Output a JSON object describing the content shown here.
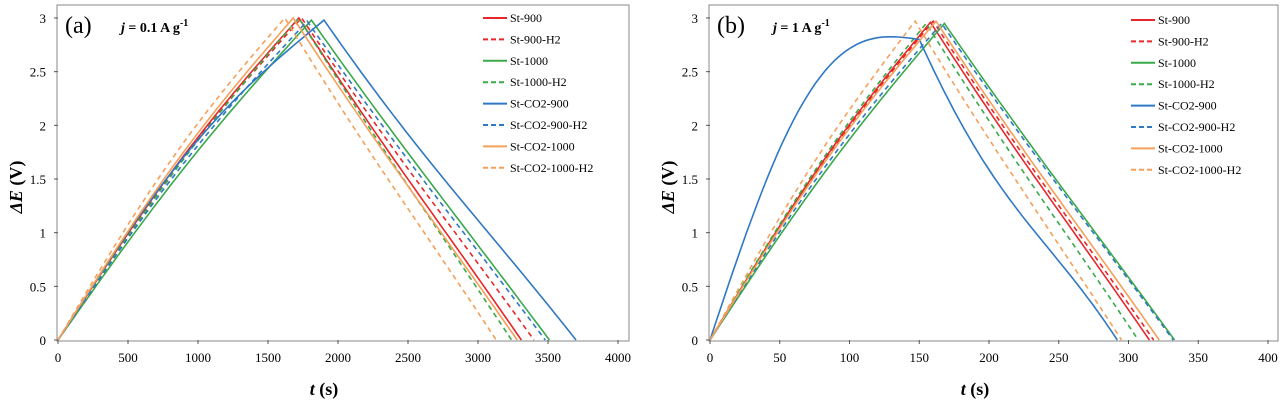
{
  "colors": {
    "red": "#e8272a",
    "green": "#3aa94a",
    "blue": "#2f78c4",
    "orange": "#f5a05a",
    "frame": "#888888"
  },
  "chart_data": [
    {
      "type": "line",
      "panel_label": "(a)",
      "annotation": {
        "prefix": "j",
        "text": " = 0.1 A g",
        "sup": "-1"
      },
      "xlabel": {
        "var": "t",
        "rest": " (s)"
      },
      "ylabel": {
        "var": "ΔE",
        "rest": " (V)"
      },
      "xlim": [
        0,
        4000
      ],
      "ylim": [
        0,
        3
      ],
      "xticks": [
        0,
        500,
        1000,
        1500,
        2000,
        2500,
        3000,
        3500,
        4000
      ],
      "yticks": [
        0,
        0.5,
        1,
        1.5,
        2,
        2.5,
        3
      ],
      "ytick_labels": [
        "0",
        "0.5",
        "1",
        "1.5",
        "2",
        "2.5",
        "3"
      ],
      "legend_position": "top-right",
      "series": [
        {
          "name": "St-900",
          "color": "red",
          "dashed": false,
          "charge_end": 1720,
          "discharge_end": 3310,
          "curve": 0.05,
          "peak": 3.0
        },
        {
          "name": "St-900-H2",
          "color": "red",
          "dashed": true,
          "charge_end": 1740,
          "discharge_end": 3400,
          "curve": 0.05,
          "peak": 3.0
        },
        {
          "name": "St-1000",
          "color": "green",
          "dashed": false,
          "charge_end": 1810,
          "discharge_end": 3510,
          "curve": 0.04,
          "peak": 2.98
        },
        {
          "name": "St-1000-H2",
          "color": "green",
          "dashed": true,
          "charge_end": 1720,
          "discharge_end": 3240,
          "curve": 0.04,
          "peak": 3.0
        },
        {
          "name": "St-CO2-900",
          "color": "blue",
          "dashed": false,
          "charge_end": 1900,
          "discharge_end": 3700,
          "curve": 0.1,
          "peak": 2.98
        },
        {
          "name": "St-CO2-900-H2",
          "color": "blue",
          "dashed": true,
          "charge_end": 1780,
          "discharge_end": 3480,
          "curve": 0.05,
          "peak": 2.97
        },
        {
          "name": "St-CO2-1000",
          "color": "orange",
          "dashed": false,
          "charge_end": 1680,
          "discharge_end": 3280,
          "curve": 0.05,
          "peak": 3.0
        },
        {
          "name": "St-CO2-1000-H2",
          "color": "orange",
          "dashed": true,
          "charge_end": 1620,
          "discharge_end": 3130,
          "curve": 0.06,
          "peak": 3.0
        }
      ]
    },
    {
      "type": "line",
      "panel_label": "(b)",
      "annotation": {
        "prefix": "j",
        "text": " = 1 A g",
        "sup": "-1"
      },
      "xlabel": {
        "var": "t",
        "rest": " (s)"
      },
      "ylabel": {
        "var": "ΔE",
        "rest": " (V)"
      },
      "xlim": [
        0,
        400
      ],
      "ylim": [
        0,
        3
      ],
      "xticks": [
        0,
        50,
        100,
        150,
        200,
        250,
        300,
        350,
        400
      ],
      "yticks": [
        0,
        0.5,
        1,
        1.5,
        2,
        2.5,
        3
      ],
      "ytick_labels": [
        "0",
        "0.5",
        "1",
        "1.5",
        "2",
        "2.5",
        "3"
      ],
      "legend_position": "top-right",
      "series": [
        {
          "name": "St-900",
          "color": "red",
          "dashed": false,
          "charge_end": 158,
          "discharge_end": 315,
          "curve": 0.05,
          "peak": 2.96
        },
        {
          "name": "St-900-H2",
          "color": "red",
          "dashed": true,
          "charge_end": 160,
          "discharge_end": 318,
          "curve": 0.05,
          "peak": 2.97
        },
        {
          "name": "St-1000",
          "color": "green",
          "dashed": false,
          "charge_end": 168,
          "discharge_end": 333,
          "curve": 0.04,
          "peak": 2.95
        },
        {
          "name": "St-1000-H2",
          "color": "green",
          "dashed": true,
          "charge_end": 155,
          "discharge_end": 307,
          "curve": 0.05,
          "peak": 2.95
        },
        {
          "name": "St-CO2-900",
          "color": "blue",
          "dashed": false,
          "charge_end": 150,
          "discharge_end": 292,
          "curve": 0.35,
          "peak": 2.8
        },
        {
          "name": "St-CO2-900-H2",
          "color": "blue",
          "dashed": true,
          "charge_end": 166,
          "discharge_end": 332,
          "curve": 0.05,
          "peak": 2.95
        },
        {
          "name": "St-CO2-1000",
          "color": "orange",
          "dashed": false,
          "charge_end": 162,
          "discharge_end": 322,
          "curve": 0.05,
          "peak": 2.97
        },
        {
          "name": "St-CO2-1000-H2",
          "color": "orange",
          "dashed": true,
          "charge_end": 147,
          "discharge_end": 295,
          "curve": 0.05,
          "peak": 2.97
        }
      ]
    }
  ]
}
